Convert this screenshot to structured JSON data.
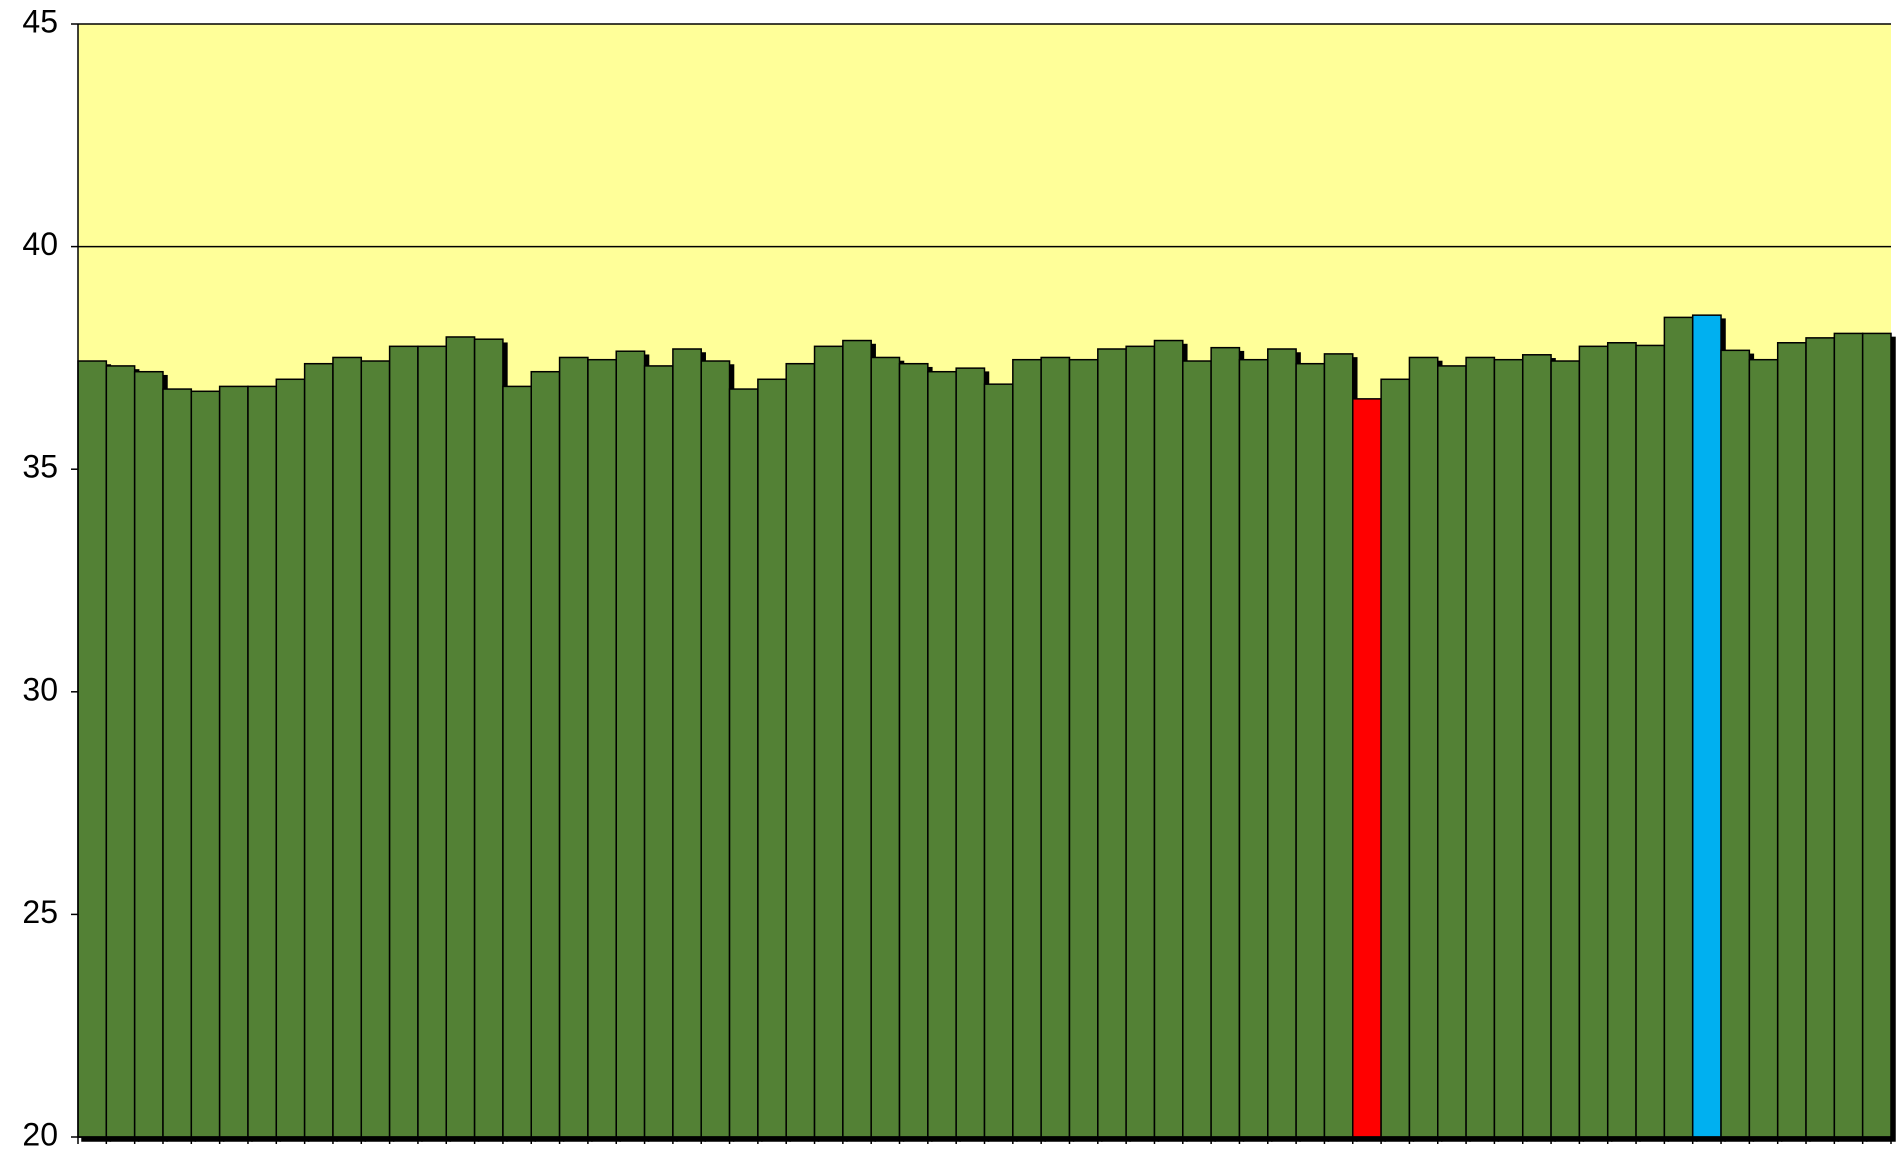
{
  "chart_data": {
    "type": "bar",
    "values": [
      37.43,
      37.32,
      37.19,
      36.8,
      36.75,
      36.86,
      36.86,
      37.02,
      37.37,
      37.51,
      37.43,
      37.76,
      37.76,
      37.97,
      37.92,
      36.86,
      37.19,
      37.51,
      37.46,
      37.65,
      37.32,
      37.7,
      37.43,
      36.8,
      37.02,
      37.37,
      37.76,
      37.89,
      37.51,
      37.37,
      37.19,
      37.27,
      36.91,
      37.46,
      37.51,
      37.46,
      37.7,
      37.76,
      37.89,
      37.43,
      37.73,
      37.46,
      37.7,
      37.37,
      37.59,
      36.58,
      37.02,
      37.51,
      37.32,
      37.51,
      37.46,
      37.57,
      37.43,
      37.76,
      37.84,
      37.78,
      38.41,
      38.46,
      37.67,
      37.46,
      37.84,
      37.95,
      38.05,
      38.05
    ],
    "colors": [
      "#538135",
      "#538135",
      "#538135",
      "#538135",
      "#538135",
      "#538135",
      "#538135",
      "#538135",
      "#538135",
      "#538135",
      "#538135",
      "#538135",
      "#538135",
      "#538135",
      "#538135",
      "#538135",
      "#538135",
      "#538135",
      "#538135",
      "#538135",
      "#538135",
      "#538135",
      "#538135",
      "#538135",
      "#538135",
      "#538135",
      "#538135",
      "#538135",
      "#538135",
      "#538135",
      "#538135",
      "#538135",
      "#538135",
      "#538135",
      "#538135",
      "#538135",
      "#538135",
      "#538135",
      "#538135",
      "#538135",
      "#538135",
      "#538135",
      "#538135",
      "#538135",
      "#538135",
      "#ff0000",
      "#538135",
      "#538135",
      "#538135",
      "#538135",
      "#538135",
      "#538135",
      "#538135",
      "#538135",
      "#538135",
      "#538135",
      "#538135",
      "#00b0f0",
      "#538135",
      "#538135",
      "#538135",
      "#538135",
      "#538135",
      "#538135"
    ],
    "ylim": [
      20,
      45
    ],
    "yticks": [
      20,
      25,
      30,
      35,
      40,
      45
    ],
    "grid": true,
    "background": "#ffff99"
  }
}
